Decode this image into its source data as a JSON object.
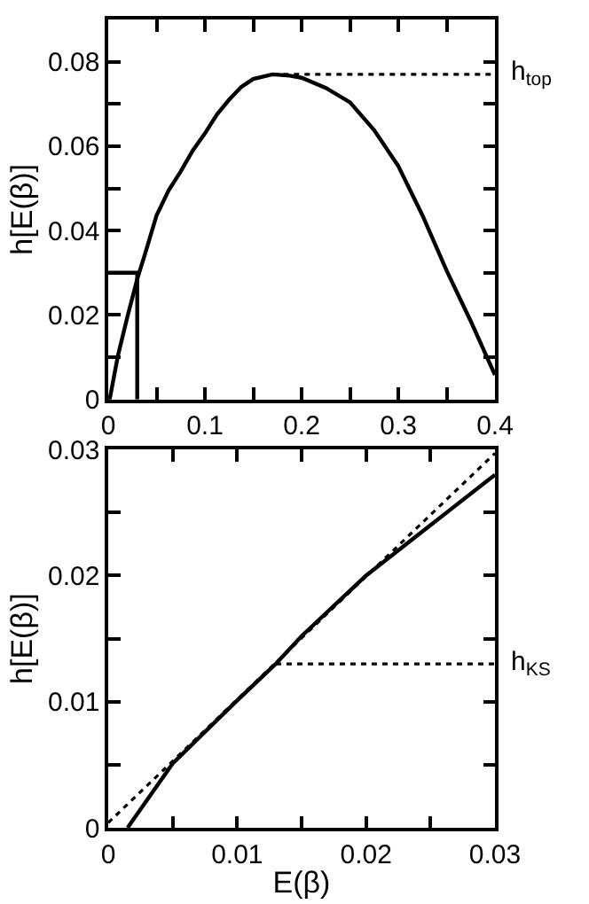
{
  "chart_data": [
    {
      "type": "line",
      "ylabel": "h[E(β)]",
      "xlim": [
        0,
        0.4
      ],
      "ylim": [
        0,
        0.09
      ],
      "xticks": [
        0,
        {
          "value": 0.05,
          "label": null
        },
        0.1,
        {
          "value": 0.15,
          "label": null
        },
        0.2,
        {
          "value": 0.25,
          "label": null
        },
        0.3,
        {
          "value": 0.35,
          "label": null
        },
        0.4
      ],
      "yticks": [
        0,
        {
          "value": 0.01,
          "label": null
        },
        0.02,
        {
          "value": 0.03,
          "label": null
        },
        0.04,
        {
          "value": 0.05,
          "label": null
        },
        0.06,
        {
          "value": 0.07,
          "label": null
        },
        0.08
      ],
      "marker": "none",
      "series": [
        {
          "color": "#000000",
          "line_style": "solid",
          "x": [
            0,
            0.0015,
            0.01,
            0.02,
            0.03,
            0.0375,
            0.05,
            0.0625,
            0.075,
            0.0875,
            0.1,
            0.1125,
            0.125,
            0.1375,
            0.15,
            0.17,
            0.1875,
            0.2,
            0.225,
            0.25,
            0.275,
            0.3,
            0.325,
            0.35,
            0.375,
            0.4
          ],
          "values": [
            0,
            0,
            0.0103,
            0.0197,
            0.0285,
            0.034,
            0.0436,
            0.0495,
            0.054,
            0.059,
            0.063,
            0.0675,
            0.071,
            0.074,
            0.0759,
            0.077,
            0.0767,
            0.0762,
            0.0738,
            0.0704,
            0.0638,
            0.0553,
            0.0436,
            0.0305,
            0.0185,
            0.0058
          ]
        },
        {
          "color": "#000000",
          "line_style": "dotted",
          "x": [
            0.17,
            0.4
          ],
          "values": [
            0.077,
            0.077
          ]
        },
        {
          "color": "#000000",
          "line_style": "solid",
          "x": [
            0,
            0.03,
            0.03
          ],
          "values": [
            0.03,
            0.03,
            0
          ]
        }
      ],
      "annotations": [
        {
          "text": "h$_{top}$",
          "x": 0.4,
          "y": 0.077
        }
      ]
    },
    {
      "type": "line",
      "xlabel": "E(β)",
      "ylabel": "h[E(β)]",
      "xlim": [
        0,
        0.03
      ],
      "ylim": [
        0,
        0.03
      ],
      "xticks": [
        0,
        {
          "value": 0.005,
          "label": null
        },
        0.01,
        {
          "value": 0.015,
          "label": null
        },
        0.02,
        {
          "value": 0.025,
          "label": null
        },
        0.03
      ],
      "yticks": [
        0,
        {
          "value": 0.005,
          "label": null
        },
        0.01,
        {
          "value": 0.015,
          "label": null
        },
        0.02,
        {
          "value": 0.025,
          "label": null
        },
        0.03
      ],
      "marker": "none",
      "series": [
        {
          "color": "#000000",
          "line_style": "solid",
          "x": [
            0.0015,
            0.005,
            0.01,
            0.013,
            0.015,
            0.02,
            0.025,
            0.03
          ],
          "values": [
            0,
            0.0051,
            0.0101,
            0.013,
            0.0152,
            0.02,
            0.024,
            0.028
          ]
        },
        {
          "color": "#000000",
          "line_style": "dotted",
          "x": [
            0,
            0.03
          ],
          "values": [
            0.0004,
            0.0297
          ]
        },
        {
          "color": "#000000",
          "line_style": "dotted",
          "x": [
            0.013,
            0.03
          ],
          "values": [
            0.013,
            0.013
          ]
        }
      ],
      "annotations": [
        {
          "text": "h$_{KS}$",
          "x": 0.03,
          "y": 0.013
        }
      ]
    }
  ]
}
